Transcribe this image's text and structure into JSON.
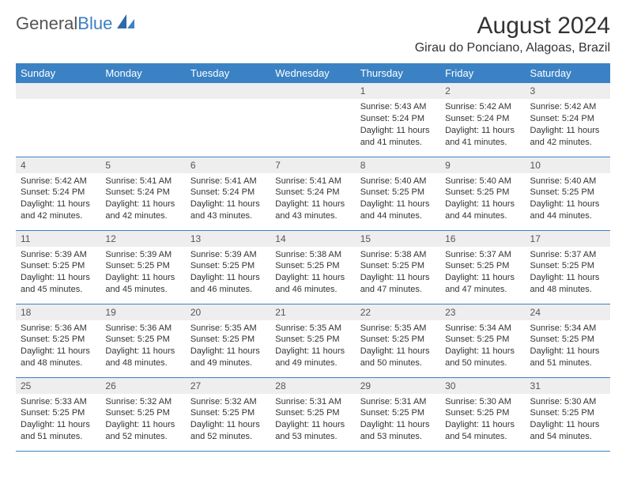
{
  "brand": {
    "name_part1": "General",
    "name_part2": "Blue",
    "logo_color": "#3b7fc4"
  },
  "header": {
    "month_title": "August 2024",
    "location": "Girau do Ponciano, Alagoas, Brazil"
  },
  "colors": {
    "header_bg": "#3b82c4",
    "header_text": "#ffffff",
    "daynum_bg": "#eeeeee",
    "row_border": "#3b82c4",
    "body_text": "#333333"
  },
  "day_labels": [
    "Sunday",
    "Monday",
    "Tuesday",
    "Wednesday",
    "Thursday",
    "Friday",
    "Saturday"
  ],
  "weeks": [
    [
      {
        "n": "",
        "sunrise": "",
        "sunset": "",
        "daylight": ""
      },
      {
        "n": "",
        "sunrise": "",
        "sunset": "",
        "daylight": ""
      },
      {
        "n": "",
        "sunrise": "",
        "sunset": "",
        "daylight": ""
      },
      {
        "n": "",
        "sunrise": "",
        "sunset": "",
        "daylight": ""
      },
      {
        "n": "1",
        "sunrise": "Sunrise: 5:43 AM",
        "sunset": "Sunset: 5:24 PM",
        "daylight": "Daylight: 11 hours and 41 minutes."
      },
      {
        "n": "2",
        "sunrise": "Sunrise: 5:42 AM",
        "sunset": "Sunset: 5:24 PM",
        "daylight": "Daylight: 11 hours and 41 minutes."
      },
      {
        "n": "3",
        "sunrise": "Sunrise: 5:42 AM",
        "sunset": "Sunset: 5:24 PM",
        "daylight": "Daylight: 11 hours and 42 minutes."
      }
    ],
    [
      {
        "n": "4",
        "sunrise": "Sunrise: 5:42 AM",
        "sunset": "Sunset: 5:24 PM",
        "daylight": "Daylight: 11 hours and 42 minutes."
      },
      {
        "n": "5",
        "sunrise": "Sunrise: 5:41 AM",
        "sunset": "Sunset: 5:24 PM",
        "daylight": "Daylight: 11 hours and 42 minutes."
      },
      {
        "n": "6",
        "sunrise": "Sunrise: 5:41 AM",
        "sunset": "Sunset: 5:24 PM",
        "daylight": "Daylight: 11 hours and 43 minutes."
      },
      {
        "n": "7",
        "sunrise": "Sunrise: 5:41 AM",
        "sunset": "Sunset: 5:24 PM",
        "daylight": "Daylight: 11 hours and 43 minutes."
      },
      {
        "n": "8",
        "sunrise": "Sunrise: 5:40 AM",
        "sunset": "Sunset: 5:25 PM",
        "daylight": "Daylight: 11 hours and 44 minutes."
      },
      {
        "n": "9",
        "sunrise": "Sunrise: 5:40 AM",
        "sunset": "Sunset: 5:25 PM",
        "daylight": "Daylight: 11 hours and 44 minutes."
      },
      {
        "n": "10",
        "sunrise": "Sunrise: 5:40 AM",
        "sunset": "Sunset: 5:25 PM",
        "daylight": "Daylight: 11 hours and 44 minutes."
      }
    ],
    [
      {
        "n": "11",
        "sunrise": "Sunrise: 5:39 AM",
        "sunset": "Sunset: 5:25 PM",
        "daylight": "Daylight: 11 hours and 45 minutes."
      },
      {
        "n": "12",
        "sunrise": "Sunrise: 5:39 AM",
        "sunset": "Sunset: 5:25 PM",
        "daylight": "Daylight: 11 hours and 45 minutes."
      },
      {
        "n": "13",
        "sunrise": "Sunrise: 5:39 AM",
        "sunset": "Sunset: 5:25 PM",
        "daylight": "Daylight: 11 hours and 46 minutes."
      },
      {
        "n": "14",
        "sunrise": "Sunrise: 5:38 AM",
        "sunset": "Sunset: 5:25 PM",
        "daylight": "Daylight: 11 hours and 46 minutes."
      },
      {
        "n": "15",
        "sunrise": "Sunrise: 5:38 AM",
        "sunset": "Sunset: 5:25 PM",
        "daylight": "Daylight: 11 hours and 47 minutes."
      },
      {
        "n": "16",
        "sunrise": "Sunrise: 5:37 AM",
        "sunset": "Sunset: 5:25 PM",
        "daylight": "Daylight: 11 hours and 47 minutes."
      },
      {
        "n": "17",
        "sunrise": "Sunrise: 5:37 AM",
        "sunset": "Sunset: 5:25 PM",
        "daylight": "Daylight: 11 hours and 48 minutes."
      }
    ],
    [
      {
        "n": "18",
        "sunrise": "Sunrise: 5:36 AM",
        "sunset": "Sunset: 5:25 PM",
        "daylight": "Daylight: 11 hours and 48 minutes."
      },
      {
        "n": "19",
        "sunrise": "Sunrise: 5:36 AM",
        "sunset": "Sunset: 5:25 PM",
        "daylight": "Daylight: 11 hours and 48 minutes."
      },
      {
        "n": "20",
        "sunrise": "Sunrise: 5:35 AM",
        "sunset": "Sunset: 5:25 PM",
        "daylight": "Daylight: 11 hours and 49 minutes."
      },
      {
        "n": "21",
        "sunrise": "Sunrise: 5:35 AM",
        "sunset": "Sunset: 5:25 PM",
        "daylight": "Daylight: 11 hours and 49 minutes."
      },
      {
        "n": "22",
        "sunrise": "Sunrise: 5:35 AM",
        "sunset": "Sunset: 5:25 PM",
        "daylight": "Daylight: 11 hours and 50 minutes."
      },
      {
        "n": "23",
        "sunrise": "Sunrise: 5:34 AM",
        "sunset": "Sunset: 5:25 PM",
        "daylight": "Daylight: 11 hours and 50 minutes."
      },
      {
        "n": "24",
        "sunrise": "Sunrise: 5:34 AM",
        "sunset": "Sunset: 5:25 PM",
        "daylight": "Daylight: 11 hours and 51 minutes."
      }
    ],
    [
      {
        "n": "25",
        "sunrise": "Sunrise: 5:33 AM",
        "sunset": "Sunset: 5:25 PM",
        "daylight": "Daylight: 11 hours and 51 minutes."
      },
      {
        "n": "26",
        "sunrise": "Sunrise: 5:32 AM",
        "sunset": "Sunset: 5:25 PM",
        "daylight": "Daylight: 11 hours and 52 minutes."
      },
      {
        "n": "27",
        "sunrise": "Sunrise: 5:32 AM",
        "sunset": "Sunset: 5:25 PM",
        "daylight": "Daylight: 11 hours and 52 minutes."
      },
      {
        "n": "28",
        "sunrise": "Sunrise: 5:31 AM",
        "sunset": "Sunset: 5:25 PM",
        "daylight": "Daylight: 11 hours and 53 minutes."
      },
      {
        "n": "29",
        "sunrise": "Sunrise: 5:31 AM",
        "sunset": "Sunset: 5:25 PM",
        "daylight": "Daylight: 11 hours and 53 minutes."
      },
      {
        "n": "30",
        "sunrise": "Sunrise: 5:30 AM",
        "sunset": "Sunset: 5:25 PM",
        "daylight": "Daylight: 11 hours and 54 minutes."
      },
      {
        "n": "31",
        "sunrise": "Sunrise: 5:30 AM",
        "sunset": "Sunset: 5:25 PM",
        "daylight": "Daylight: 11 hours and 54 minutes."
      }
    ]
  ]
}
